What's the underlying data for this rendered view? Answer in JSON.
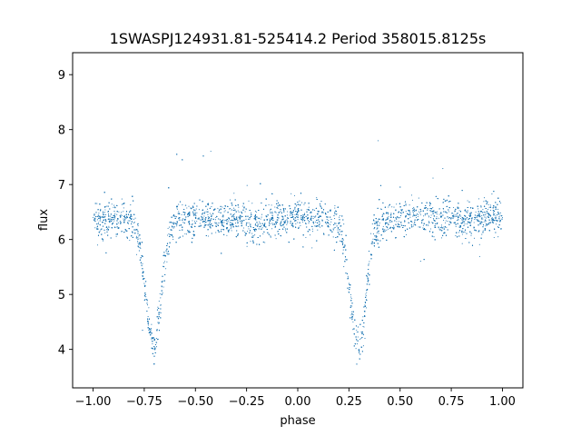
{
  "chart_data": {
    "type": "scatter",
    "title": "1SWASPJ124931.81-525414.2 Period 358015.8125s",
    "xlabel": "phase",
    "ylabel": "flux",
    "xlim": [
      -1.1,
      1.1
    ],
    "ylim": [
      3.3,
      9.4
    ],
    "x_ticks": [
      -1.0,
      -0.75,
      -0.5,
      -0.25,
      0.0,
      0.25,
      0.5,
      0.75,
      1.0
    ],
    "x_tick_labels": [
      "−1.00",
      "−0.75",
      "−0.50",
      "−0.25",
      "0.00",
      "0.25",
      "0.50",
      "0.75",
      "1.00"
    ],
    "y_ticks": [
      4,
      5,
      6,
      7,
      8,
      9
    ],
    "y_tick_labels": [
      "4",
      "5",
      "6",
      "7",
      "8",
      "9"
    ],
    "grid": false,
    "marker_color": "#1f77b4",
    "series": [
      {
        "x": [
          -1.0,
          -0.95,
          -0.9,
          -0.85,
          -0.8,
          -0.77,
          -0.75,
          -0.73,
          -0.71,
          -0.7,
          -0.69,
          -0.67,
          -0.65,
          -0.63,
          -0.6,
          -0.55,
          -0.5,
          -0.45,
          -0.4,
          -0.35,
          -0.3,
          -0.25,
          -0.2,
          -0.15,
          -0.1,
          -0.05,
          0.0,
          0.05,
          0.1,
          0.15,
          0.2,
          0.23,
          0.25,
          0.27,
          0.29,
          0.3,
          0.31,
          0.33,
          0.35,
          0.37,
          0.4,
          0.45,
          0.5,
          0.55,
          0.6,
          0.65,
          0.7,
          0.75,
          0.8,
          0.85,
          0.9,
          0.95,
          1.0
        ],
        "y": [
          6.4,
          6.35,
          6.4,
          6.35,
          6.3,
          5.9,
          5.2,
          4.5,
          4.1,
          4.0,
          4.2,
          4.8,
          5.6,
          6.1,
          6.3,
          6.35,
          6.4,
          6.35,
          6.4,
          6.35,
          6.4,
          6.3,
          6.25,
          6.35,
          6.4,
          6.4,
          6.4,
          6.35,
          6.4,
          6.35,
          6.3,
          5.9,
          5.2,
          4.5,
          4.1,
          4.0,
          4.2,
          4.8,
          5.6,
          6.1,
          6.3,
          6.35,
          6.4,
          6.45,
          6.45,
          6.4,
          6.4,
          6.4,
          6.3,
          6.35,
          6.4,
          6.4,
          6.4
        ]
      }
    ]
  }
}
